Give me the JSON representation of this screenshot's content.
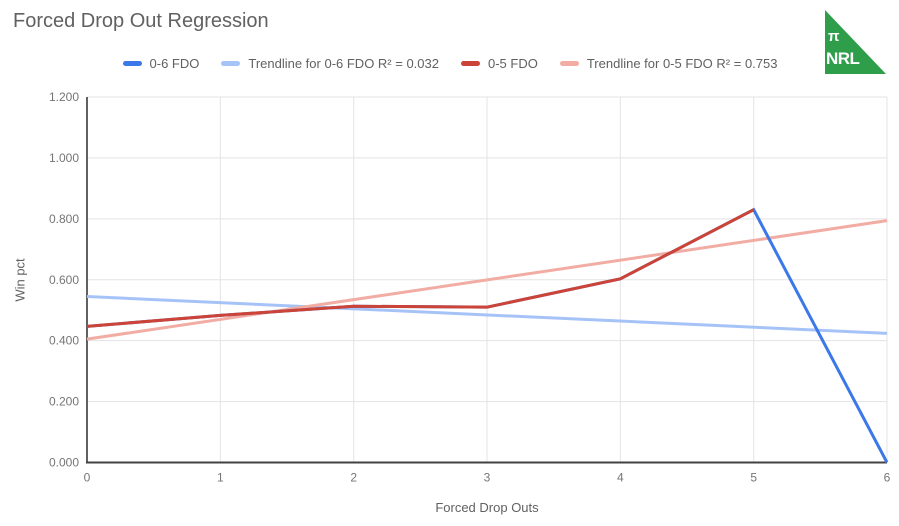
{
  "title": "Forced Drop Out Regression",
  "logo": {
    "pi": "π",
    "text": "NRL",
    "color": "#2E9E4B"
  },
  "chart_data": {
    "type": "line",
    "title": "Forced Drop Out Regression",
    "xlabel": "Forced Drop Outs",
    "ylabel": "Win pct",
    "xlim": [
      0,
      6
    ],
    "ylim": [
      0,
      1.2
    ],
    "x_ticks": [
      0,
      1,
      2,
      3,
      4,
      5,
      6
    ],
    "y_tick_values": [
      0,
      0.2,
      0.4,
      0.6,
      0.8,
      1.0,
      1.2
    ],
    "y_tick_labels": [
      "0.000",
      "0.200",
      "0.400",
      "0.600",
      "0.800",
      "1.000",
      "1.200"
    ],
    "grid": true,
    "legend_position": "top",
    "series": [
      {
        "name": "0-6 FDO",
        "color": "#3B78E8",
        "z": 2,
        "x": [
          0,
          1,
          2,
          3,
          4,
          5,
          6
        ],
        "y": [
          0.447,
          0.483,
          0.513,
          0.51,
          0.603,
          0.83,
          0.0
        ]
      },
      {
        "name": "Trendline for 0-6 FDO R² = 0.032",
        "color": "#A6C3F7",
        "z": 1,
        "x": [
          0,
          6
        ],
        "y": [
          0.545,
          0.424
        ]
      },
      {
        "name": "0-5 FDO",
        "color": "#CC4337",
        "z": 3,
        "x": [
          0,
          1,
          2,
          3,
          4,
          5
        ],
        "y": [
          0.447,
          0.483,
          0.513,
          0.51,
          0.603,
          0.83
        ]
      },
      {
        "name": "Trendline for 0-5 FDO R² = 0.753",
        "color": "#F1ACA3",
        "z": 1,
        "x": [
          0,
          6
        ],
        "y": [
          0.405,
          0.794
        ]
      }
    ]
  }
}
